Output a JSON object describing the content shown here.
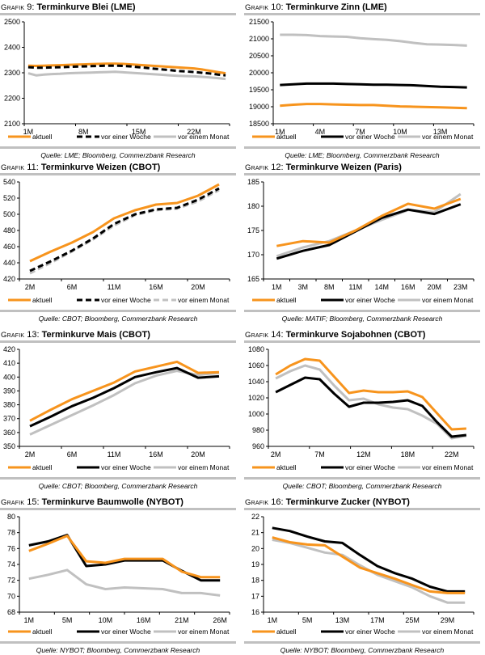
{
  "legend_labels": [
    "aktuell",
    "vor einer Woche",
    "vor einem Monat"
  ],
  "series_colors": {
    "aktuell": "#f7941d",
    "vor einer Woche": "#000000",
    "vor einem Monat": "#c0c0c0"
  },
  "chart_data": [
    {
      "id": "grafik-9",
      "type": "line",
      "title_prefix": "Grafik",
      "title_number": "9:",
      "title": "Terminkurve Blei (LME)",
      "source": "Quelle: LME; Bloomberg, Commerzbank Research",
      "xlabel": "",
      "ylabel": "",
      "ylim": [
        2100,
        2500
      ],
      "yticks": [
        2100,
        2200,
        2300,
        2400,
        2500
      ],
      "x_tick_labels": [
        "1M",
        "8M",
        "15M",
        "22M"
      ],
      "x_tick_positions": [
        0,
        7,
        14,
        21
      ],
      "x_count": 26,
      "grid": false,
      "legend": "bottom",
      "series": [
        {
          "name": "aktuell",
          "style": "solid",
          "values": [
            2328,
            2327,
            2328,
            2329,
            2330,
            2331,
            2332,
            2333,
            2334,
            2335,
            2336,
            2336,
            2335,
            2333,
            2331,
            2329,
            2327,
            2325,
            2323,
            2321,
            2319,
            2317,
            2313,
            2308,
            2303,
            2298
          ]
        },
        {
          "name": "vor einer Woche",
          "style": "dashed",
          "values": [
            2322,
            2320,
            2320,
            2321,
            2322,
            2323,
            2324,
            2325,
            2326,
            2327,
            2328,
            2328,
            2327,
            2325,
            2322,
            2319,
            2316,
            2313,
            2310,
            2307,
            2305,
            2303,
            2300,
            2297,
            2293,
            2290
          ]
        },
        {
          "name": "vor einem Monat",
          "style": "solid",
          "values": [
            2298,
            2290,
            2293,
            2295,
            2296,
            2298,
            2299,
            2300,
            2301,
            2302,
            2303,
            2304,
            2302,
            2300,
            2298,
            2296,
            2294,
            2292,
            2290,
            2288,
            2287,
            2286,
            2284,
            2282,
            2279,
            2276
          ]
        }
      ]
    },
    {
      "id": "grafik-10",
      "type": "line",
      "title_prefix": "Grafik",
      "title_number": "10:",
      "title": "Terminkurve Zinn (LME)",
      "source": "Quelle: LME; Bloomberg, Commerzbank Research",
      "xlabel": "",
      "ylabel": "",
      "ylim": [
        18500,
        21500
      ],
      "yticks": [
        18500,
        19000,
        19500,
        20000,
        20500,
        21000,
        21500
      ],
      "x_tick_labels": [
        "1M",
        "4M",
        "7M",
        "10M",
        "13M"
      ],
      "x_tick_positions": [
        0,
        3,
        6,
        9,
        12
      ],
      "x_count": 15,
      "grid": false,
      "legend": "bottom",
      "series": [
        {
          "name": "aktuell",
          "style": "solid",
          "values": [
            19030,
            19060,
            19080,
            19080,
            19070,
            19060,
            19050,
            19050,
            19030,
            19010,
            19000,
            18990,
            18980,
            18970,
            18960
          ]
        },
        {
          "name": "vor einer Woche",
          "style": "solid",
          "values": [
            19640,
            19660,
            19680,
            19680,
            19680,
            19670,
            19660,
            19650,
            19650,
            19640,
            19630,
            19610,
            19590,
            19580,
            19570
          ]
        },
        {
          "name": "vor einem Monat",
          "style": "solid",
          "values": [
            21120,
            21120,
            21110,
            21080,
            21070,
            21060,
            21020,
            20990,
            20970,
            20930,
            20880,
            20840,
            20830,
            20820,
            20800
          ]
        }
      ]
    },
    {
      "id": "grafik-11",
      "type": "line",
      "title_prefix": "Grafik",
      "title_number": "11:",
      "title": "Terminkurve Weizen (CBOT)",
      "source": "Quelle: CBOT; Bloomberg, Commerzbank Research",
      "xlabel": "",
      "ylabel": "",
      "ylim": [
        420,
        540
      ],
      "yticks": [
        420,
        440,
        460,
        480,
        500,
        520,
        540
      ],
      "x_tick_labels": [
        "2M",
        "6M",
        "11M",
        "16M",
        "20M"
      ],
      "x_tick_positions": [
        0,
        2,
        4,
        6,
        8
      ],
      "x_count": 10,
      "grid": false,
      "legend": "bottom",
      "series": [
        {
          "name": "aktuell",
          "style": "solid",
          "values": [
            442,
            454,
            465,
            478,
            495,
            505,
            512,
            514,
            523,
            537
          ]
        },
        {
          "name": "vor einer Woche",
          "style": "dashed",
          "values": [
            430,
            442,
            455,
            470,
            488,
            500,
            506,
            508,
            518,
            532
          ]
        },
        {
          "name": "vor einem Monat",
          "style": "dashed",
          "values": [
            427,
            440,
            454,
            469,
            486,
            499,
            505,
            507,
            516,
            530
          ]
        }
      ]
    },
    {
      "id": "grafik-12",
      "type": "line",
      "title_prefix": "Grafik",
      "title_number": "12:",
      "title": "Terminkurve Weizen (Paris)",
      "source": "Quelle: MATIF; Bloomberg, Commerzbank Research",
      "xlabel": "",
      "ylabel": "",
      "ylim": [
        165,
        185
      ],
      "yticks": [
        165,
        170,
        175,
        180,
        185
      ],
      "x_tick_labels": [
        "1M",
        "3M",
        "8M",
        "11M",
        "14M",
        "16M",
        "20M",
        "23M"
      ],
      "x_tick_positions": [
        0,
        1,
        2,
        3,
        4,
        5,
        6,
        7
      ],
      "x_count": 8,
      "grid": false,
      "legend": "bottom",
      "series": [
        {
          "name": "aktuell",
          "style": "solid",
          "values": [
            171.8,
            172.8,
            172.5,
            175.0,
            178.0,
            180.5,
            179.5,
            181.5
          ]
        },
        {
          "name": "vor einer Woche",
          "style": "solid",
          "values": [
            169.2,
            170.8,
            172.0,
            174.8,
            177.6,
            179.3,
            178.4,
            180.4
          ]
        },
        {
          "name": "vor einem Monat",
          "style": "solid",
          "values": [
            169.7,
            171.5,
            172.8,
            175.0,
            177.2,
            179.2,
            178.8,
            182.5
          ]
        }
      ]
    },
    {
      "id": "grafik-13",
      "type": "line",
      "title_prefix": "Grafik",
      "title_number": "13:",
      "title": "Terminkurve Mais (CBOT)",
      "source": "Quelle: CBOT; Bloomberg, Commerzbank Research",
      "xlabel": "",
      "ylabel": "",
      "ylim": [
        350,
        420
      ],
      "yticks": [
        350,
        360,
        370,
        380,
        390,
        400,
        410,
        420
      ],
      "x_tick_labels": [
        "2M",
        "6M",
        "11M",
        "16M",
        "20M"
      ],
      "x_tick_positions": [
        0,
        2,
        4,
        6,
        8
      ],
      "x_count": 10,
      "grid": false,
      "legend": "bottom",
      "series": [
        {
          "name": "aktuell",
          "style": "solid",
          "values": [
            368.5,
            376.5,
            384,
            390,
            396,
            404,
            407.5,
            411,
            403,
            403.5
          ]
        },
        {
          "name": "vor einer Woche",
          "style": "solid",
          "values": [
            364.5,
            371.5,
            379,
            385,
            392,
            400,
            403.5,
            406.5,
            399.5,
            400.5
          ]
        },
        {
          "name": "vor einem Monat",
          "style": "solid",
          "values": [
            358.5,
            365.5,
            372.5,
            379.5,
            387,
            395.5,
            401,
            404.5,
            401.5,
            403
          ]
        }
      ]
    },
    {
      "id": "grafik-14",
      "type": "line",
      "title_prefix": "Grafik",
      "title_number": "14:",
      "title": "Terminkurve Sojabohnen (CBOT)",
      "source": "Quelle: CBOT; Bloomberg, Commerzbank Research",
      "xlabel": "",
      "ylabel": "",
      "ylim": [
        960,
        1080
      ],
      "yticks": [
        960,
        980,
        1000,
        1020,
        1040,
        1060,
        1080
      ],
      "x_tick_labels": [
        "2M",
        "7M",
        "12M",
        "18M",
        "22M"
      ],
      "x_tick_positions": [
        0,
        3,
        6,
        9,
        12
      ],
      "x_count": 14,
      "grid": false,
      "legend": "bottom",
      "series": [
        {
          "name": "aktuell",
          "style": "solid",
          "values": [
            1049,
            1060,
            1068,
            1066,
            1046,
            1026,
            1029,
            1027,
            1027,
            1028,
            1021,
            1001,
            981,
            982
          ]
        },
        {
          "name": "vor einer Woche",
          "style": "solid",
          "values": [
            1027,
            1036,
            1045,
            1043,
            1025,
            1009,
            1014,
            1014,
            1015,
            1017,
            1010,
            990,
            972,
            974
          ]
        },
        {
          "name": "vor einem Monat",
          "style": "solid",
          "values": [
            1044,
            1053,
            1060,
            1055,
            1035,
            1017,
            1019,
            1012,
            1008,
            1006,
            998,
            988,
            970,
            973
          ]
        }
      ]
    },
    {
      "id": "grafik-15",
      "type": "line",
      "title_prefix": "Grafik",
      "title_number": "15:",
      "title": "Terminkurve Baumwolle (NYBOT)",
      "source": "Quelle: NYBOT; Bloomberg, Commerzbank Research",
      "xlabel": "",
      "ylabel": "",
      "ylim": [
        68,
        80
      ],
      "yticks": [
        68,
        70,
        72,
        74,
        76,
        78,
        80
      ],
      "x_tick_labels": [
        "1M",
        "5M",
        "10M",
        "16M",
        "21M",
        "26M"
      ],
      "x_tick_positions": [
        0,
        2,
        4,
        6,
        8,
        10
      ],
      "x_count": 11,
      "grid": false,
      "legend": "bottom",
      "series": [
        {
          "name": "aktuell",
          "style": "solid",
          "values": [
            75.7,
            76.6,
            77.6,
            74.4,
            74.2,
            74.7,
            74.7,
            74.7,
            73.1,
            72.4,
            72.4
          ]
        },
        {
          "name": "vor einer Woche",
          "style": "solid",
          "values": [
            76.4,
            76.9,
            77.7,
            73.8,
            74.0,
            74.5,
            74.5,
            74.5,
            73.2,
            72.0,
            72.0
          ]
        },
        {
          "name": "vor einem Monat",
          "style": "solid",
          "values": [
            72.2,
            72.7,
            73.3,
            71.5,
            70.9,
            71.1,
            71.0,
            70.9,
            70.4,
            70.4,
            70.1
          ]
        }
      ]
    },
    {
      "id": "grafik-16",
      "type": "line",
      "title_prefix": "Grafik",
      "title_number": "16:",
      "title": "Terminkurve Zucker (NYBOT)",
      "source": "Quelle: NYBOT; Bloomberg, Commerzbank Research",
      "xlabel": "",
      "ylabel": "",
      "ylim": [
        16,
        22
      ],
      "yticks": [
        16,
        17,
        18,
        19,
        20,
        21,
        22
      ],
      "x_tick_labels": [
        "1M",
        "5M",
        "13M",
        "17M",
        "25M",
        "29M"
      ],
      "x_tick_positions": [
        0,
        2,
        4,
        6,
        8,
        10
      ],
      "x_count": 12,
      "grid": false,
      "legend": "bottom",
      "series": [
        {
          "name": "aktuell",
          "style": "solid",
          "values": [
            20.7,
            20.4,
            20.25,
            20.2,
            19.5,
            18.8,
            18.45,
            18.1,
            17.7,
            17.3,
            17.2,
            17.2
          ]
        },
        {
          "name": "vor einer Woche",
          "style": "solid",
          "values": [
            21.3,
            21.1,
            20.75,
            20.45,
            20.35,
            19.6,
            18.9,
            18.45,
            18.1,
            17.6,
            17.3,
            17.3
          ]
        },
        {
          "name": "vor einem Monat",
          "style": "solid",
          "values": [
            20.55,
            20.35,
            20.05,
            19.75,
            19.6,
            18.95,
            18.35,
            17.95,
            17.55,
            17.0,
            16.6,
            16.6
          ]
        }
      ]
    }
  ]
}
